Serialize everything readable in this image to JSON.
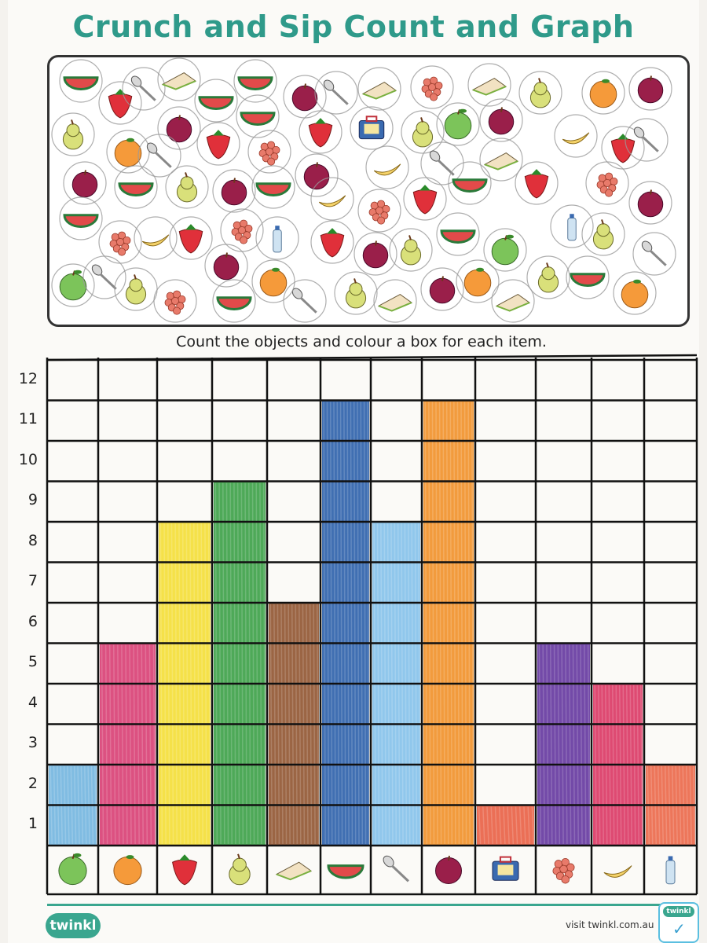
{
  "title": "Crunch and Sip Count and Graph",
  "instruction": "Count the objects and colour a box for each item.",
  "footer": {
    "logo": "twinkl",
    "visit": "visit twinkl.com.au",
    "badge": "twinkl"
  },
  "chart_data": {
    "type": "bar",
    "categories": [
      "apple",
      "orange",
      "strawberry",
      "pear",
      "sandwich",
      "watermelon",
      "spoon",
      "plum",
      "lunchbox",
      "grapes",
      "banana",
      "water bottle"
    ],
    "values": [
      2,
      5,
      8,
      9,
      6,
      11,
      8,
      11,
      1,
      5,
      4,
      2
    ],
    "bar_colors": [
      "#6ab0de",
      "#d6336c",
      "#f3dc2a",
      "#2f9a3c",
      "#8a4a24",
      "#1f56a6",
      "#7dbdea",
      "#f08a1c",
      "#e8563a",
      "#5a2a9a",
      "#d82a5a",
      "#ea5e3e"
    ],
    "ylim": [
      0,
      12
    ],
    "y_ticks": [
      1,
      2,
      3,
      4,
      5,
      6,
      7,
      8,
      9,
      10,
      11,
      12
    ],
    "grid": true
  }
}
